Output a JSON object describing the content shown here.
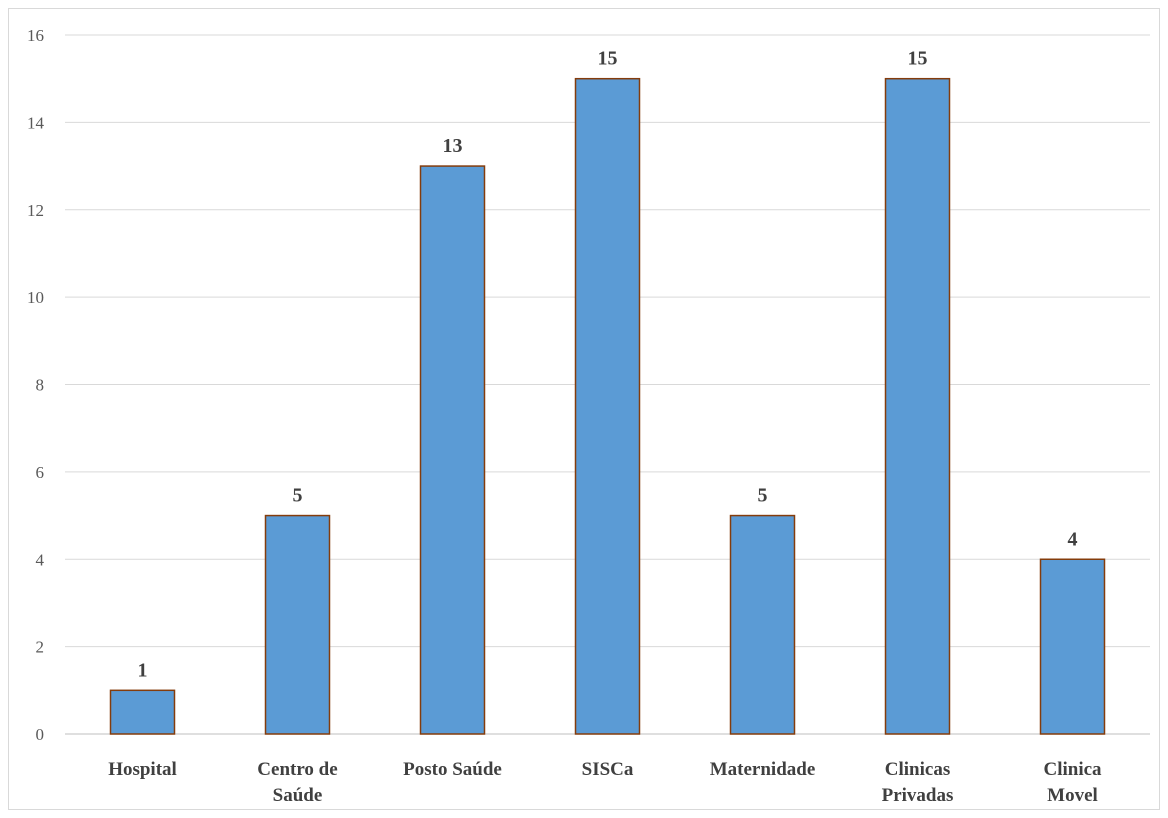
{
  "chart_data": {
    "type": "bar",
    "categories": [
      "Hospital",
      "Centro de Saúde",
      "Posto Saúde",
      "SISCa",
      "Maternidade",
      "Clinicas Privadas",
      "Clinica Movel"
    ],
    "category_lines": [
      [
        "Hospital"
      ],
      [
        "Centro de",
        "Saúde"
      ],
      [
        "Posto Saúde"
      ],
      [
        "SISCa"
      ],
      [
        "Maternidade"
      ],
      [
        "Clinicas",
        "Privadas"
      ],
      [
        "Clinica",
        "Movel"
      ]
    ],
    "values": [
      1,
      5,
      13,
      15,
      5,
      15,
      4
    ],
    "data_labels": [
      "1",
      "5",
      "13",
      "15",
      "5",
      "15",
      "4"
    ],
    "y_ticks": [
      "0",
      "2",
      "4",
      "6",
      "8",
      "10",
      "12",
      "14",
      "16"
    ],
    "ylim": [
      0,
      16
    ],
    "title": "",
    "xlabel": "",
    "ylabel": "",
    "grid": true,
    "legend": "none",
    "colors": {
      "bar_fill": "#5b9bd5",
      "bar_stroke": "#843c0c",
      "grid": "#d9d9d9",
      "text": "#404040"
    }
  }
}
